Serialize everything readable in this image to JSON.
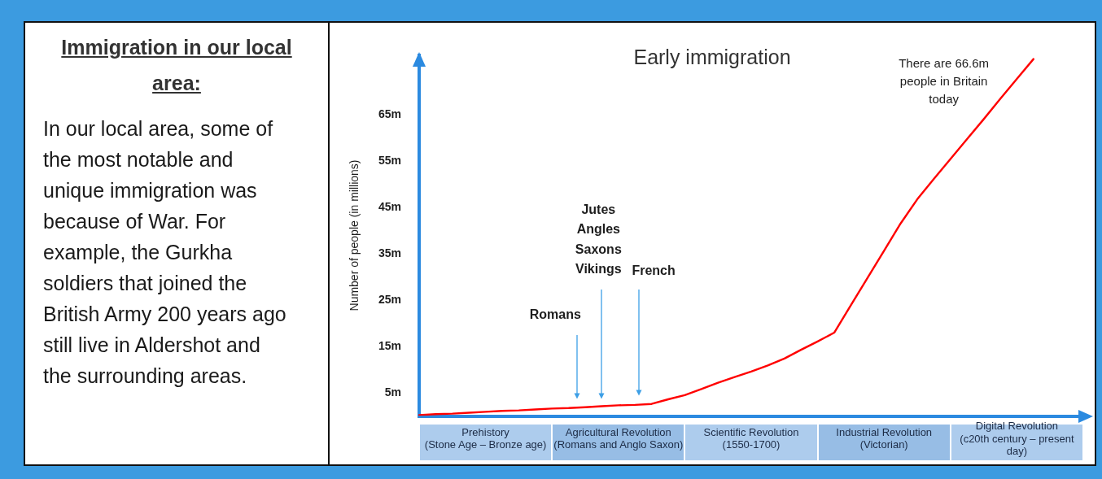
{
  "chart_data": [
    {
      "type": "other",
      "title": "Immigration in our local area:",
      "annotations": [
        "In our local area, some of the most notable and unique immigration was because of War. For example, the Gurkha soldiers that joined the British Army 200 years ago still live in Aldershot and the surrounding areas."
      ]
    },
    {
      "type": "line",
      "title": "Early immigration",
      "ylabel": "Number of people (in millions)",
      "categories": [
        null,
        null,
        null,
        null,
        "Prehistory (Stone Age – Bronze age)",
        null,
        null,
        null,
        null,
        null,
        null,
        null,
        "Agricultural Revolution (Romans and Anglo Saxon)",
        null,
        null,
        null,
        null,
        null,
        null,
        null,
        "Scientific Revolution (1550-1700)",
        null,
        null,
        null,
        null,
        null,
        null,
        null,
        "Industrial Revolution (Victorian)",
        null,
        null,
        null,
        null,
        null,
        null,
        null,
        "Digital Revolution (c20th century – present day)",
        null,
        null,
        null,
        null
      ],
      "values": [
        0.2,
        0.4,
        0.5,
        0.7,
        0.9,
        1.1,
        1.2,
        1.4,
        1.6,
        1.7,
        1.9,
        2.1,
        2.3,
        2.4,
        2.6,
        3.6,
        4.5,
        5.8,
        7.2,
        8.4,
        9.6,
        10.9,
        12.4,
        14.3,
        16.1,
        18,
        23.9,
        29.8,
        35.7,
        41.6,
        46.8,
        51.2,
        55.5,
        59.8,
        64.1,
        68.5,
        72.8,
        77.1,
        null,
        null,
        null
      ],
      "color": "#ff0000",
      "marker": "none",
      "ylim": [
        0,
        78
      ],
      "yticks": [
        {
          "value": 5,
          "label": "5m"
        },
        {
          "value": 15,
          "label": "15m"
        },
        {
          "value": 25,
          "label": "25m"
        },
        {
          "value": 35,
          "label": "35m"
        },
        {
          "value": 45,
          "label": "45m"
        },
        {
          "value": 55,
          "label": "55m"
        },
        {
          "value": 65,
          "label": "65m"
        }
      ],
      "annotations": [
        "Romans",
        "Jutes Angles Saxons Vikings",
        "French",
        "There are 66.6m people in Britain today"
      ]
    }
  ]
}
